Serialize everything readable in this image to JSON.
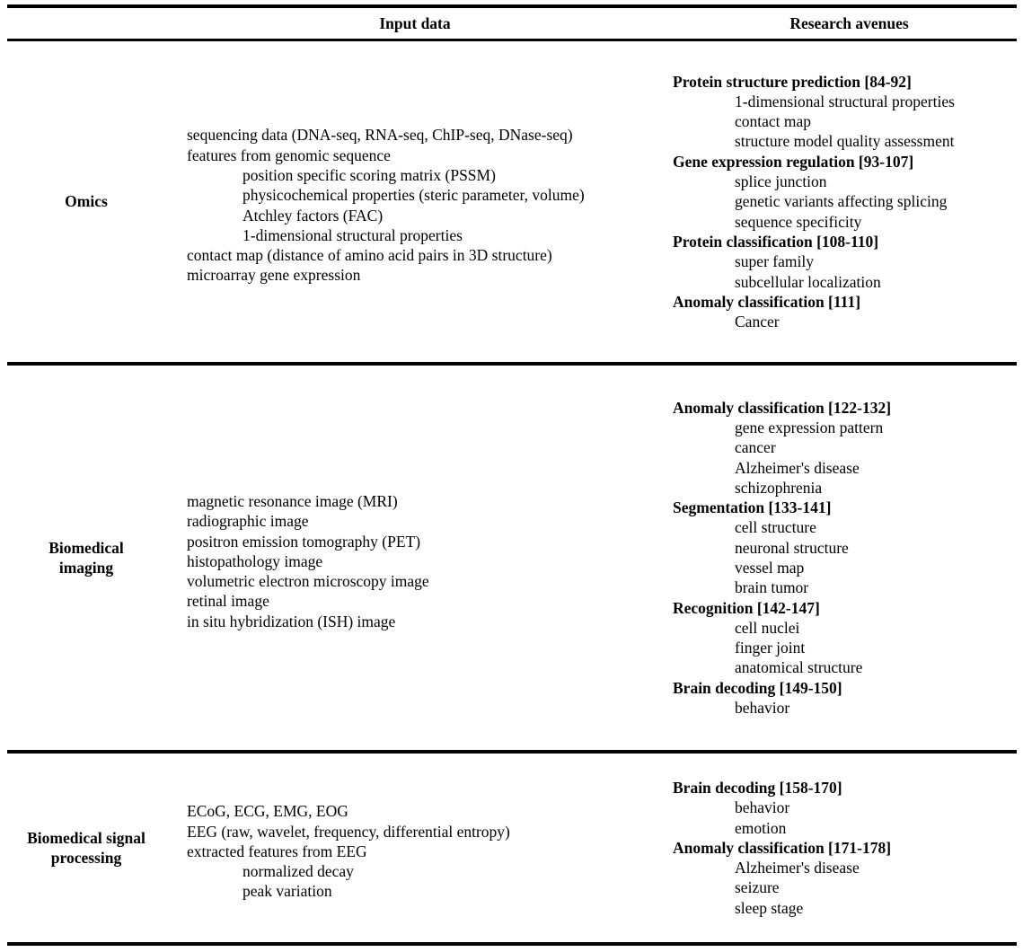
{
  "colors": {
    "background": "#ffffff",
    "text": "#000000",
    "rule": "#000000"
  },
  "table": {
    "headers": {
      "input": "Input data",
      "research": "Research avenues"
    },
    "rows": [
      {
        "label": "Omics",
        "input_items": [
          {
            "text": "sequencing data (DNA-seq, RNA-seq, ChIP-seq, DNase-seq)",
            "indent": 0,
            "bold": false
          },
          {
            "text": "features from genomic sequence",
            "indent": 0,
            "bold": false
          },
          {
            "text": "position specific scoring matrix (PSSM)",
            "indent": 1,
            "bold": false
          },
          {
            "text": "physicochemical properties (steric parameter, volume)",
            "indent": 1,
            "bold": false
          },
          {
            "text": "Atchley factors (FAC)",
            "indent": 1,
            "bold": false
          },
          {
            "text": "1-dimensional structural properties",
            "indent": 1,
            "bold": false
          },
          {
            "text": "contact map (distance of amino acid pairs in 3D structure)",
            "indent": 0,
            "bold": false
          },
          {
            "text": "microarray gene expression",
            "indent": 0,
            "bold": false
          }
        ],
        "research_items": [
          {
            "text": "Protein structure prediction [84-92]",
            "indent": 0,
            "bold": true
          },
          {
            "text": "1-dimensional structural properties",
            "indent": 1,
            "bold": false
          },
          {
            "text": "contact map",
            "indent": 1,
            "bold": false
          },
          {
            "text": "structure model quality assessment",
            "indent": 1,
            "bold": false
          },
          {
            "text": "Gene expression regulation [93-107]",
            "indent": 0,
            "bold": true
          },
          {
            "text": "splice junction",
            "indent": 1,
            "bold": false
          },
          {
            "text": "genetic variants affecting splicing",
            "indent": 1,
            "bold": false
          },
          {
            "text": "sequence specificity",
            "indent": 1,
            "bold": false
          },
          {
            "text": "Protein classification [108-110]",
            "indent": 0,
            "bold": true
          },
          {
            "text": "super family",
            "indent": 1,
            "bold": false
          },
          {
            "text": "subcellular localization",
            "indent": 1,
            "bold": false
          },
          {
            "text": "Anomaly classification [111]",
            "indent": 0,
            "bold": true
          },
          {
            "text": "Cancer",
            "indent": 1,
            "bold": false
          }
        ]
      },
      {
        "label": "Biomedical imaging",
        "input_items": [
          {
            "text": "magnetic resonance image (MRI)",
            "indent": 0,
            "bold": false
          },
          {
            "text": "radiographic image",
            "indent": 0,
            "bold": false
          },
          {
            "text": "positron emission tomography (PET)",
            "indent": 0,
            "bold": false
          },
          {
            "text": "histopathology image",
            "indent": 0,
            "bold": false
          },
          {
            "text": "volumetric electron microscopy image",
            "indent": 0,
            "bold": false
          },
          {
            "text": "retinal image",
            "indent": 0,
            "bold": false
          },
          {
            "text": "in situ hybridization (ISH) image",
            "indent": 0,
            "bold": false
          }
        ],
        "research_items": [
          {
            "text": "Anomaly classification [122-132]",
            "indent": 0,
            "bold": true
          },
          {
            "text": "gene expression pattern",
            "indent": 1,
            "bold": false
          },
          {
            "text": "cancer",
            "indent": 1,
            "bold": false
          },
          {
            "text": "Alzheimer's disease",
            "indent": 1,
            "bold": false
          },
          {
            "text": "schizophrenia",
            "indent": 1,
            "bold": false
          },
          {
            "text": "Segmentation [133-141]",
            "indent": 0,
            "bold": true
          },
          {
            "text": "cell structure",
            "indent": 1,
            "bold": false
          },
          {
            "text": "neuronal structure",
            "indent": 1,
            "bold": false
          },
          {
            "text": "vessel map",
            "indent": 1,
            "bold": false
          },
          {
            "text": "brain tumor",
            "indent": 1,
            "bold": false
          },
          {
            "text": "Recognition [142-147]",
            "indent": 0,
            "bold": true
          },
          {
            "text": "cell nuclei",
            "indent": 1,
            "bold": false
          },
          {
            "text": "finger joint",
            "indent": 1,
            "bold": false
          },
          {
            "text": "anatomical structure",
            "indent": 1,
            "bold": false
          },
          {
            "text": "Brain decoding [149-150]",
            "indent": 0,
            "bold": true
          },
          {
            "text": "behavior",
            "indent": 1,
            "bold": false
          }
        ]
      },
      {
        "label": "Biomedical signal processing",
        "input_items": [
          {
            "text": "ECoG, ECG, EMG, EOG",
            "indent": 0,
            "bold": false
          },
          {
            "text": "EEG (raw, wavelet, frequency, differential entropy)",
            "indent": 0,
            "bold": false
          },
          {
            "text": "extracted features from EEG",
            "indent": 0,
            "bold": false
          },
          {
            "text": "normalized decay",
            "indent": 1,
            "bold": false
          },
          {
            "text": "peak variation",
            "indent": 1,
            "bold": false
          }
        ],
        "research_items": [
          {
            "text": "Brain decoding [158-170]",
            "indent": 0,
            "bold": true
          },
          {
            "text": "behavior",
            "indent": 1,
            "bold": false
          },
          {
            "text": "emotion",
            "indent": 1,
            "bold": false
          },
          {
            "text": "Anomaly classification [171-178]",
            "indent": 0,
            "bold": true
          },
          {
            "text": "Alzheimer's disease",
            "indent": 1,
            "bold": false
          },
          {
            "text": "seizure",
            "indent": 1,
            "bold": false
          },
          {
            "text": "sleep stage",
            "indent": 1,
            "bold": false
          }
        ]
      }
    ]
  }
}
